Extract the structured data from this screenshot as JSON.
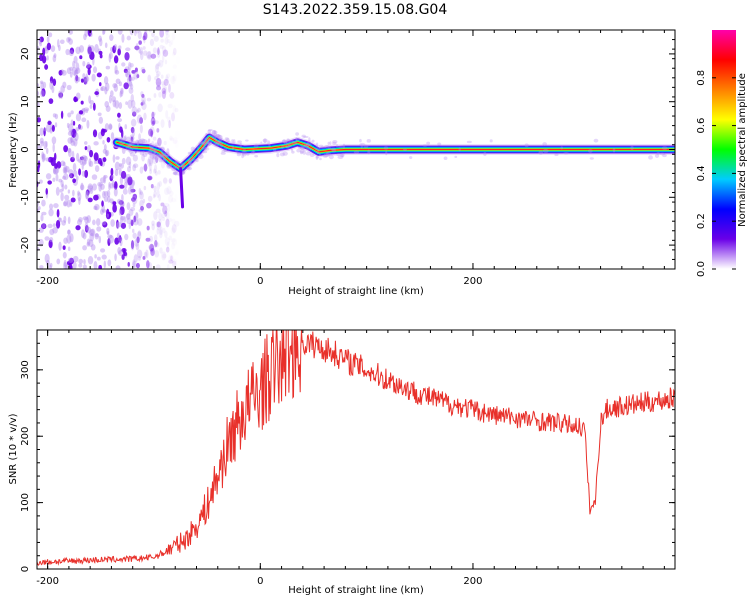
{
  "figure": {
    "title": "S143.2022.359.15.08.G04"
  },
  "chart_data": [
    {
      "type": "heatmap",
      "xlabel": "Height of straight line (km)",
      "ylabel": "Frequency (Hz)",
      "xlim": [
        -210,
        390
      ],
      "ylim": [
        -25,
        25
      ],
      "x_ticks": [
        -200,
        0,
        200
      ],
      "y_ticks": [
        -20,
        -10,
        0,
        10,
        20
      ],
      "colorbar": {
        "label": "Normalized spectral amplitude",
        "range": [
          0,
          1
        ],
        "ticks": [
          0.0,
          0.2,
          0.4,
          0.6,
          0.8
        ],
        "tick_labels": [
          "0.0",
          "0.2",
          "0.4",
          "0.6",
          "0.8"
        ],
        "colors": [
          "#ffffff",
          "#6a00e8",
          "#0000ff",
          "#00ccff",
          "#00ff00",
          "#ffff00",
          "#ff8000",
          "#ff0000",
          "#ff00aa"
        ]
      },
      "signal_track": [
        {
          "x": -135,
          "y": 1.5
        },
        {
          "x": -120,
          "y": 0.5
        },
        {
          "x": -105,
          "y": 0.3
        },
        {
          "x": -95,
          "y": -0.5
        },
        {
          "x": -85,
          "y": -2.5
        },
        {
          "x": -75,
          "y": -4
        },
        {
          "x": -65,
          "y": -2
        },
        {
          "x": -55,
          "y": 0.5
        },
        {
          "x": -48,
          "y": 2.5
        },
        {
          "x": -40,
          "y": 1.5
        },
        {
          "x": -30,
          "y": 0.5
        },
        {
          "x": -15,
          "y": 0
        },
        {
          "x": 10,
          "y": 0.3
        },
        {
          "x": 25,
          "y": 0.8
        },
        {
          "x": 35,
          "y": 1.5
        },
        {
          "x": 45,
          "y": 0.8
        },
        {
          "x": 55,
          "y": -0.5
        },
        {
          "x": 65,
          "y": -0.2
        },
        {
          "x": 80,
          "y": 0
        },
        {
          "x": 120,
          "y": 0
        },
        {
          "x": 200,
          "y": 0
        },
        {
          "x": 300,
          "y": 0
        },
        {
          "x": 390,
          "y": 0
        }
      ],
      "noise_region": [
        -210,
        -95
      ]
    },
    {
      "type": "line",
      "xlabel": "Height of straight line (km)",
      "ylabel": "SNR (10 * v/v)",
      "xlim": [
        -210,
        390
      ],
      "ylim": [
        0,
        360
      ],
      "x_ticks": [
        -200,
        0,
        200
      ],
      "y_ticks": [
        0,
        100,
        200,
        300
      ],
      "line_color": "#e8302a",
      "series": [
        {
          "x": [
            -210,
            -180,
            -150,
            -120,
            -100,
            -90,
            -80,
            -70,
            -60,
            -50,
            -40,
            -30,
            -20,
            -10,
            0,
            10,
            20,
            30,
            40,
            50,
            60,
            70,
            80,
            100,
            120,
            140,
            160,
            180,
            200,
            220,
            240,
            260,
            280,
            300,
            305,
            310,
            315,
            320,
            325,
            330,
            340,
            360,
            380,
            390
          ],
          "values": [
            10,
            12,
            14,
            15,
            18,
            25,
            35,
            45,
            65,
            95,
            140,
            190,
            225,
            250,
            270,
            295,
            320,
            335,
            340,
            338,
            332,
            325,
            315,
            300,
            285,
            270,
            258,
            248,
            240,
            232,
            228,
            223,
            220,
            215,
            210,
            90,
            100,
            220,
            240,
            242,
            245,
            250,
            255,
            258
          ]
        }
      ]
    }
  ]
}
